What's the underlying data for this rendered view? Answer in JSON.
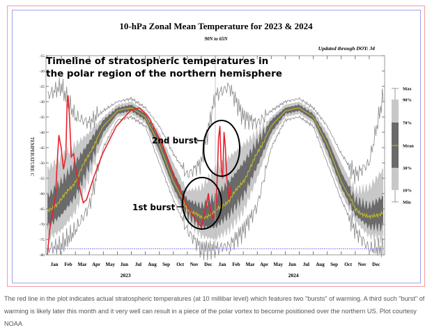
{
  "chart_data": {
    "type": "area",
    "title": "10-hPa Zonal Mean Temperature for 2023 & 2024",
    "subtitle": "90N to 65N",
    "updated": "Updated through DOY:  34",
    "ylabel": "TEMPERATURE C",
    "ylim": [
      -80,
      -15
    ],
    "yticks": [
      -15,
      -20,
      -25,
      -30,
      -35,
      -40,
      -45,
      -50,
      -55,
      -60,
      -65,
      -70,
      -75,
      -80
    ],
    "month_labels": [
      "Jan",
      "Feb",
      "Mar",
      "Apr",
      "May",
      "Jun",
      "Jul",
      "Aug",
      "Sep",
      "Oct",
      "Nov",
      "Dec",
      "Jan",
      "Feb",
      "Mar",
      "Apr",
      "May",
      "Jun",
      "Jul",
      "Aug",
      "Sep",
      "Oct",
      "Nov",
      "Dec"
    ],
    "year_labels": [
      "2023",
      "2024"
    ],
    "climatology_monthly": {
      "mean": [
        -66,
        -62,
        -56,
        -47,
        -38,
        -33,
        -32,
        -35,
        -44,
        -56,
        -65,
        -68,
        -66
      ],
      "p70": [
        -61,
        -56,
        -50,
        -43,
        -36,
        -32,
        -31,
        -34,
        -42,
        -53,
        -62,
        -64,
        -61
      ],
      "p30": [
        -71,
        -67,
        -61,
        -51,
        -40,
        -34,
        -33,
        -36,
        -46,
        -58,
        -67,
        -71,
        -71
      ],
      "p90": [
        -52,
        -48,
        -44,
        -40,
        -35,
        -31,
        -30,
        -33,
        -40,
        -50,
        -59,
        -58,
        -52
      ],
      "p10": [
        -75,
        -72,
        -66,
        -55,
        -42,
        -35,
        -34,
        -37,
        -48,
        -60,
        -69,
        -74,
        -75
      ],
      "max": [
        -28,
        -25,
        -35,
        -37,
        -33,
        -30,
        -29,
        -32,
        -38,
        -47,
        -54,
        -50,
        -28
      ],
      "min": [
        -78,
        -77,
        -72,
        -64,
        -45,
        -36,
        -35,
        -38,
        -50,
        -62,
        -72,
        -78,
        -78
      ]
    },
    "observed_series": {
      "name": "Actual temperature",
      "color": "#e8202a",
      "points_day_temp": [
        [
          0,
          -80
        ],
        [
          5,
          -72
        ],
        [
          12,
          -66
        ],
        [
          18,
          -60
        ],
        [
          22,
          -48
        ],
        [
          25,
          -41
        ],
        [
          30,
          -45
        ],
        [
          35,
          -52
        ],
        [
          40,
          -48
        ],
        [
          43,
          -30
        ],
        [
          45,
          -28
        ],
        [
          48,
          -35
        ],
        [
          52,
          -48
        ],
        [
          57,
          -47
        ],
        [
          62,
          -52
        ],
        [
          70,
          -58
        ],
        [
          78,
          -63
        ],
        [
          85,
          -62
        ],
        [
          100,
          -55
        ],
        [
          120,
          -47
        ],
        [
          150,
          -38
        ],
        [
          180,
          -33
        ],
        [
          200,
          -32
        ],
        [
          220,
          -35
        ],
        [
          250,
          -44
        ],
        [
          280,
          -56
        ],
        [
          300,
          -63
        ],
        [
          320,
          -68
        ],
        [
          335,
          -71
        ],
        [
          345,
          -64
        ],
        [
          350,
          -60
        ],
        [
          355,
          -66
        ],
        [
          360,
          -68
        ],
        [
          365,
          -67
        ],
        [
          368,
          -60
        ],
        [
          372,
          -42
        ],
        [
          375,
          -38
        ],
        [
          378,
          -52
        ],
        [
          381,
          -55
        ],
        [
          384,
          -40
        ],
        [
          387,
          -45
        ],
        [
          390,
          -55
        ],
        [
          395,
          -62
        ],
        [
          399,
          -58
        ]
      ]
    },
    "legend": {
      "placement": "right",
      "labels": [
        "Max",
        "90%",
        "70%",
        "Mean",
        "30%",
        "10%",
        "Min"
      ]
    },
    "colors": {
      "light_band": "#c8c8c8",
      "dark_band": "#6a6a6a",
      "mean": "#c8c020",
      "minmax": "#888888"
    },
    "annotations": {
      "heading_line1": "Timeline of stratospheric temperatures in",
      "heading_line2": "the polar region of the northern hemisphere",
      "burst1": "1st burst",
      "burst2": "2nd burst"
    }
  },
  "caption": "The red line in the plot indicates actual stratospheric temperatures (at 10 millibar level) which features two \"bursts\" of warming. A third such \"burst\" of warming is likely later this month and it very well can result in a piece of the polar vortex to become positioned over the northern US. Plot courtesy NOAA"
}
